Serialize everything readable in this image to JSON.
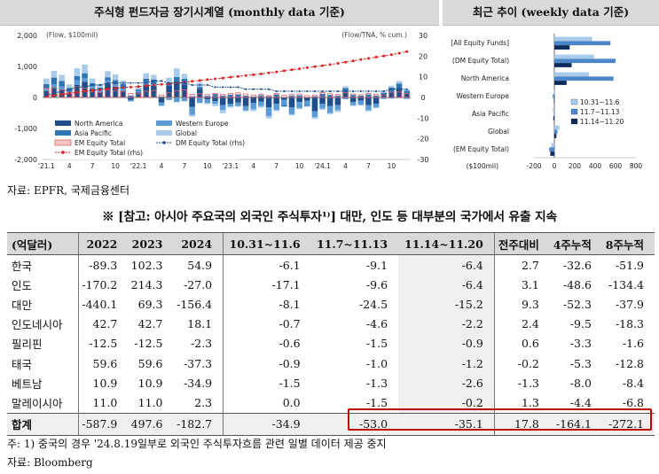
{
  "left_title": "주식형 펀드자금 장기시계열 (monthly data 기준)",
  "right_title": "최근 추이 (weekly data 기준)",
  "chart_data": [
    {
      "type": "bar",
      "title": "주식형 펀드자금 장기시계열 (monthly data 기준)",
      "unit_left": "(Flow, $100mil)",
      "unit_right": "(Flow/TNA, % cum.)",
      "y_ticks": [
        "2,000",
        "1,000",
        "0",
        "-1,000",
        "-2,000"
      ],
      "ylim": [
        -2000,
        2000
      ],
      "y2_ticks": [
        "30",
        "20",
        "10",
        "0",
        "-10",
        "-20",
        "-30"
      ],
      "y2lim": [
        -30,
        30
      ],
      "x_ticks": [
        "'21.1",
        "4",
        "7",
        "10",
        "'22.1",
        "4",
        "7",
        "10",
        "'23.1",
        "4",
        "7",
        "10",
        "'24.1",
        "4",
        "7",
        "10"
      ],
      "legend": [
        "North America",
        "Western Europe",
        "Asia Pacific",
        "Global",
        "EM Equity Total",
        "DM Equity Total (rhs)",
        "EM Equity Total (rhs)"
      ],
      "colors": {
        "north_america": "#1f4e8c",
        "western_europe": "#5b9bd5",
        "asia_pacific": "#2e75b6",
        "global": "#a9cbeb",
        "em_total": "#e06666",
        "dm_line": "#1f4e8c",
        "em_line": "#e02020"
      },
      "series": [
        {
          "name": "North America",
          "values": [
            200,
            300,
            250,
            120,
            400,
            500,
            280,
            180,
            450,
            350,
            220,
            -80,
            160,
            420,
            380,
            -160,
            380,
            500,
            420,
            -300,
            280,
            -60,
            -120,
            -250,
            -200,
            -160,
            -280,
            -180,
            -130,
            -320,
            -200,
            -80,
            -320,
            -150,
            -100,
            -450,
            -200,
            -280,
            -250,
            180,
            -150,
            -100,
            -250,
            -200,
            100,
            180,
            300,
            120
          ]
        },
        {
          "name": "Western Europe",
          "values": [
            80,
            120,
            100,
            60,
            150,
            120,
            90,
            60,
            100,
            80,
            60,
            -40,
            50,
            60,
            40,
            -100,
            -80,
            -150,
            -120,
            -260,
            -180,
            -120,
            -80,
            -160,
            -90,
            -120,
            -140,
            -200,
            -150,
            -280,
            -200,
            -160,
            -220,
            -200,
            -140,
            -180,
            -160,
            -220,
            -160,
            -60,
            -100,
            -140,
            -160,
            -120,
            -50,
            -40,
            -20,
            -50
          ]
        },
        {
          "name": "Asia Pacific",
          "values": [
            150,
            220,
            180,
            120,
            140,
            160,
            90,
            80,
            100,
            130,
            150,
            60,
            50,
            120,
            160,
            30,
            100,
            160,
            180,
            40,
            60,
            50,
            110,
            60,
            90,
            100,
            60,
            30,
            70,
            40,
            100,
            -50,
            60,
            70,
            -40,
            40,
            120,
            80,
            60,
            120,
            80,
            60,
            100,
            60,
            50,
            140,
            150,
            100
          ]
        },
        {
          "name": "Global",
          "values": [
            180,
            220,
            200,
            120,
            250,
            280,
            150,
            120,
            200,
            180,
            120,
            -20,
            60,
            180,
            150,
            -30,
            160,
            280,
            160,
            -60,
            140,
            -40,
            -80,
            -100,
            -40,
            -20,
            -30,
            -60,
            -50,
            -80,
            -40,
            -20,
            -40,
            -30,
            -20,
            -60,
            -40,
            -40,
            -60,
            60,
            -30,
            -20,
            -40,
            -30,
            40,
            60,
            80,
            40
          ]
        },
        {
          "name": "EM Equity Total",
          "values": [
            300,
            320,
            250,
            160,
            350,
            300,
            180,
            150,
            250,
            220,
            200,
            130,
            120,
            200,
            230,
            80,
            150,
            220,
            240,
            100,
            120,
            90,
            130,
            100,
            130,
            150,
            110,
            80,
            100,
            60,
            130,
            70,
            100,
            110,
            60,
            80,
            160,
            120,
            100,
            160,
            110,
            90,
            130,
            100,
            80,
            170,
            180,
            130
          ]
        },
        {
          "name": "DM Equity Total (rhs)",
          "values": [
            1,
            2,
            3,
            4,
            5,
            5,
            6,
            6,
            7,
            7,
            7,
            7,
            7,
            7,
            8,
            8,
            7,
            7,
            7,
            6,
            6,
            6,
            5,
            5,
            5,
            5,
            4,
            4,
            4,
            4,
            3,
            3,
            3,
            3,
            3,
            3,
            3,
            3,
            3,
            3,
            3,
            3,
            3,
            3,
            3,
            4,
            4,
            4
          ]
        },
        {
          "name": "EM Equity Total (rhs)",
          "values": [
            0.5,
            1,
            1.5,
            2,
            2.5,
            3,
            3.5,
            3.8,
            4.2,
            4.5,
            4.8,
            5,
            5.3,
            5.6,
            6,
            6.3,
            6.6,
            7,
            7.4,
            7.8,
            8.2,
            8.6,
            9,
            9.4,
            9.8,
            10.2,
            10.6,
            11,
            11.4,
            11.9,
            12.4,
            12.9,
            13.4,
            13.9,
            14.4,
            14.9,
            15.4,
            15.9,
            16.5,
            17.1,
            17.7,
            18.3,
            18.9,
            19.5,
            20.1,
            20.7,
            21.4,
            22.2
          ]
        }
      ]
    },
    {
      "type": "bar",
      "title": "최근 추이 (weekly data 기준)",
      "orientation": "horizontal",
      "categories": [
        "[All Equity Funds]",
        "(DM Equity Total)",
        "North America",
        "Western Europe",
        "Asia Pacific",
        "Global",
        "(EM Equity Total)"
      ],
      "xlabel": "($100mil)",
      "x_ticks": [
        "-200",
        "0",
        "200",
        "400",
        "600",
        "800"
      ],
      "xlim": [
        -200,
        800
      ],
      "legend": [
        "10.31~11.6",
        "11.7~11.13",
        "11.14~11.20"
      ],
      "colors": [
        "#a9cbeb",
        "#4a86c8",
        "#0d2b5a"
      ],
      "series": [
        {
          "name": "10.31~11.6",
          "values": [
            370,
            390,
            340,
            -5,
            -15,
            50,
            -30
          ]
        },
        {
          "name": "11.7~11.13",
          "values": [
            550,
            600,
            580,
            -15,
            -5,
            30,
            -50
          ]
        },
        {
          "name": "11.14~11.20",
          "values": [
            150,
            170,
            120,
            -5,
            -10,
            20,
            -40
          ]
        }
      ]
    }
  ],
  "source1": "자료: EPFR, 국제금융센터",
  "heading": "※ [참고: 아시아 주요국의 외국인 주식투자¹⁾] 대만, 인도 등 대부분의 국가에서 유출 지속",
  "table": {
    "headers": [
      "(억달러)",
      "2022",
      "2023",
      "2024",
      "10.31~11.6",
      "11.7~11.13",
      "11.14~11.20",
      "전주대비",
      "4주누적",
      "8주누적"
    ],
    "rows": [
      [
        "한국",
        "-89.3",
        "102.3",
        "54.9",
        "-6.1",
        "-9.1",
        "-6.4",
        "2.7",
        "-32.6",
        "-51.9"
      ],
      [
        "인도",
        "-170.2",
        "214.3",
        "-27.0",
        "-17.1",
        "-9.6",
        "-6.4",
        "3.1",
        "-48.6",
        "-134.4"
      ],
      [
        "대만",
        "-440.1",
        "69.3",
        "-156.4",
        "-8.1",
        "-24.5",
        "-15.2",
        "9.3",
        "-52.3",
        "-37.9"
      ],
      [
        "인도네시아",
        "42.7",
        "42.7",
        "18.1",
        "-0.7",
        "-4.6",
        "-2.2",
        "2.4",
        "-9.5",
        "-18.3"
      ],
      [
        "필리핀",
        "-12.5",
        "-12.5",
        "-2.3",
        "-0.6",
        "-1.5",
        "-0.9",
        "0.6",
        "-3.3",
        "-1.6"
      ],
      [
        "태국",
        "59.6",
        "59.6",
        "-37.3",
        "-0.9",
        "-1.0",
        "-1.2",
        "-0.2",
        "-5.3",
        "-12.8"
      ],
      [
        "베트남",
        "10.9",
        "10.9",
        "-34.9",
        "-1.5",
        "-1.3",
        "-2.6",
        "-1.3",
        "-8.0",
        "-8.4"
      ],
      [
        "말레이시아",
        "11.0",
        "11.0",
        "2.3",
        "0.0",
        "-1.5",
        "-0.2",
        "1.3",
        "-4.4",
        "-6.8"
      ]
    ],
    "total": [
      "합계",
      "-587.9",
      "497.6",
      "-182.7",
      "-34.9",
      "-53.0",
      "-35.1",
      "17.8",
      "-164.1",
      "-272.1"
    ]
  },
  "note": "주: 1) 중국의 경우 '24.8.19일부로 외국인 주식투자흐름 관련 일별 데이터 제공 중지",
  "source2": "자료: Bloomberg"
}
